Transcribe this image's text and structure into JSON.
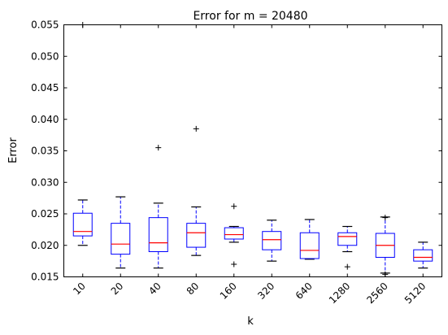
{
  "chart_data": {
    "type": "box",
    "title": "Error for m = 20480",
    "xlabel": "k",
    "ylabel": "Error",
    "categories": [
      "10",
      "20",
      "40",
      "80",
      "160",
      "320",
      "640",
      "1280",
      "2560",
      "5120"
    ],
    "ylim": [
      0.015,
      0.055
    ],
    "yticks": [
      "0.015",
      "0.020",
      "0.025",
      "0.030",
      "0.035",
      "0.040",
      "0.045",
      "0.050",
      "0.055"
    ],
    "grid": false,
    "boxes": [
      {
        "whisker_low": 0.02,
        "q1": 0.0215,
        "median": 0.0222,
        "q3": 0.0251,
        "whisker_high": 0.0272,
        "outliers": [
          0.055
        ]
      },
      {
        "whisker_low": 0.0164,
        "q1": 0.0186,
        "median": 0.0202,
        "q3": 0.0235,
        "whisker_high": 0.0277,
        "outliers": []
      },
      {
        "whisker_low": 0.0164,
        "q1": 0.019,
        "median": 0.0204,
        "q3": 0.0244,
        "whisker_high": 0.0267,
        "outliers": [
          0.0355
        ]
      },
      {
        "whisker_low": 0.0184,
        "q1": 0.0197,
        "median": 0.022,
        "q3": 0.0235,
        "whisker_high": 0.0261,
        "outliers": [
          0.0385
        ]
      },
      {
        "whisker_low": 0.0205,
        "q1": 0.021,
        "median": 0.0217,
        "q3": 0.0228,
        "whisker_high": 0.023,
        "outliers": [
          0.0262,
          0.017
        ]
      },
      {
        "whisker_low": 0.0175,
        "q1": 0.0193,
        "median": 0.0209,
        "q3": 0.0222,
        "whisker_high": 0.024,
        "outliers": []
      },
      {
        "whisker_low": 0.0178,
        "q1": 0.0179,
        "median": 0.0192,
        "q3": 0.022,
        "whisker_high": 0.0241,
        "outliers": []
      },
      {
        "whisker_low": 0.019,
        "q1": 0.02,
        "median": 0.0214,
        "q3": 0.022,
        "whisker_high": 0.023,
        "outliers": [
          0.0166
        ]
      },
      {
        "whisker_low": 0.0156,
        "q1": 0.0181,
        "median": 0.02,
        "q3": 0.0219,
        "whisker_high": 0.0245,
        "outliers": [
          0.0154,
          0.0244
        ]
      },
      {
        "whisker_low": 0.0164,
        "q1": 0.0175,
        "median": 0.0181,
        "q3": 0.0193,
        "whisker_high": 0.0205,
        "outliers": []
      }
    ],
    "colors": {
      "box": "#0000ff",
      "median": "#ff0000",
      "whisker_cap": "#000000",
      "flier": "#000000",
      "axes": "#000000"
    }
  }
}
